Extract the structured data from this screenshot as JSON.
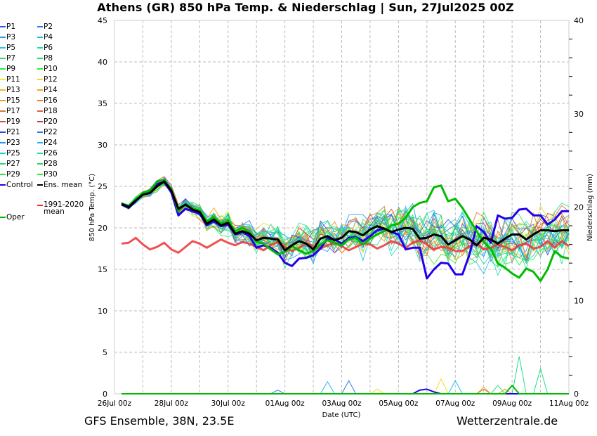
{
  "header": {
    "title": "Athens  (GR)  850 hPa Temp. & Niederschlag | Sun, 27Jul2025 00Z"
  },
  "footer": {
    "left": "GFS Ensemble, 38N, 23.5E",
    "right": "Wetterzentrale.de"
  },
  "chart_data": {
    "type": "line",
    "title": "Athens  (GR)  850 hPa Temp. & Niederschlag | Sun, 27Jul2025 00Z",
    "xlabel": "Date (UTC)",
    "ylabel": "850 hPa Temp. (°C)",
    "y2label": "Niederschlag (mm)",
    "ylim": [
      0,
      45
    ],
    "y2lim": [
      0,
      40
    ],
    "yticks": [
      "0",
      "5",
      "10",
      "15",
      "20",
      "25",
      "30",
      "35",
      "40",
      "45"
    ],
    "y2ticks": [
      "0",
      "10",
      "20",
      "30",
      "40"
    ],
    "xticks": [
      "26Jul 00z",
      "28Jul 00z",
      "30Jul 00z",
      "01Aug 00z",
      "03Aug 00z",
      "05Aug 00z",
      "07Aug 00z",
      "09Aug 00z",
      "11Aug 00z"
    ],
    "x_start": "26Jul 06z",
    "x_step_hours": 6,
    "grid": true,
    "legend_position": "left-outside",
    "legend": [
      {
        "name": "P1",
        "color": "#2255ee"
      },
      {
        "name": "P2",
        "color": "#3377ee"
      },
      {
        "name": "P3",
        "color": "#2299ee"
      },
      {
        "name": "P4",
        "color": "#22bbee"
      },
      {
        "name": "P5",
        "color": "#22ccdd"
      },
      {
        "name": "P6",
        "color": "#22ddaa"
      },
      {
        "name": "P7",
        "color": "#22dd88"
      },
      {
        "name": "P8",
        "color": "#22dd66"
      },
      {
        "name": "P9",
        "color": "#22ee44"
      },
      {
        "name": "P10",
        "color": "#33ee33"
      },
      {
        "name": "P11",
        "color": "#eeee22"
      },
      {
        "name": "P12",
        "color": "#eedd22"
      },
      {
        "name": "P13",
        "color": "#eebb22"
      },
      {
        "name": "P14",
        "color": "#eeaa22"
      },
      {
        "name": "P15",
        "color": "#ee9922"
      },
      {
        "name": "P16",
        "color": "#dd8822"
      },
      {
        "name": "P17",
        "color": "#dd7733"
      },
      {
        "name": "P18",
        "color": "#dd6644"
      },
      {
        "name": "P19",
        "color": "#cc5544"
      },
      {
        "name": "P20",
        "color": "#bb4444"
      },
      {
        "name": "P21",
        "color": "#2244ee"
      },
      {
        "name": "P22",
        "color": "#3377ee"
      },
      {
        "name": "P23",
        "color": "#2299ee"
      },
      {
        "name": "P24",
        "color": "#22bbee"
      },
      {
        "name": "P25",
        "color": "#22ccdd"
      },
      {
        "name": "P26",
        "color": "#22ddaa"
      },
      {
        "name": "P27",
        "color": "#22dd88"
      },
      {
        "name": "P28",
        "color": "#22dd66"
      },
      {
        "name": "P29",
        "color": "#22ee44"
      },
      {
        "name": "P30",
        "color": "#33ee33"
      },
      {
        "name": "Control",
        "color": "#2200ee"
      },
      {
        "name": "Ens. mean",
        "color": "#000000"
      },
      {
        "name": "1991-2020 mean",
        "color": "#ee3333"
      },
      {
        "name": "Oper",
        "color": "#00bb00"
      }
    ],
    "series": [
      {
        "name": "Ens. mean",
        "color": "#000000",
        "axis": "temp",
        "values": [
          22.9,
          22.5,
          23.3,
          24.0,
          24.2,
          25.0,
          25.6,
          24.5,
          22.3,
          22.8,
          22.2,
          21.9,
          20.5,
          21.0,
          20.3,
          20.6,
          19.3,
          19.6,
          19.3,
          18.5,
          18.8,
          18.7,
          18.6,
          17.3,
          17.9,
          18.4,
          18.1,
          17.4,
          18.7,
          19.0,
          18.5,
          18.8,
          19.6,
          19.5,
          19.1,
          19.8,
          20.2,
          19.9,
          19.5,
          19.8,
          20.0,
          19.9,
          18.7,
          18.8,
          19.2,
          19.0,
          18.0,
          18.5,
          19.0,
          18.6,
          17.9,
          18.8,
          18.6,
          18.1,
          18.7,
          19.2,
          19.2,
          18.6,
          19.2,
          19.7,
          19.7,
          19.6,
          19.7,
          19.7
        ]
      },
      {
        "name": "Control",
        "color": "#2200ee",
        "axis": "temp",
        "values": [
          22.8,
          22.4,
          23.2,
          24.1,
          24.3,
          25.3,
          25.5,
          24.3,
          21.5,
          22.3,
          22.0,
          21.7,
          20.3,
          20.8,
          20.2,
          20.4,
          19.2,
          19.5,
          19.0,
          17.6,
          17.9,
          17.6,
          17.0,
          15.8,
          15.4,
          16.3,
          16.4,
          16.7,
          17.5,
          18.7,
          18.6,
          18.1,
          18.8,
          18.9,
          18.4,
          19.0,
          19.7,
          19.9,
          19.5,
          19.2,
          17.4,
          17.6,
          17.6,
          13.9,
          15.0,
          15.8,
          15.7,
          14.4,
          14.4,
          16.8,
          20.2,
          19.5,
          18.2,
          21.5,
          21.1,
          21.2,
          22.2,
          22.3,
          21.5,
          21.5,
          20.4,
          21.0,
          22.0,
          22.0
        ]
      },
      {
        "name": "Oper",
        "color": "#00bb00",
        "axis": "temp",
        "values": [
          22.9,
          22.6,
          23.4,
          24.2,
          24.5,
          25.6,
          25.8,
          24.6,
          22.0,
          22.9,
          22.3,
          22.1,
          20.8,
          21.3,
          20.5,
          20.9,
          19.6,
          20.0,
          19.5,
          18.3,
          18.1,
          17.4,
          16.8,
          17.1,
          17.8,
          17.3,
          16.9,
          17.2,
          18.0,
          18.5,
          18.2,
          17.9,
          18.6,
          18.8,
          18.0,
          18.7,
          19.2,
          19.6,
          20.3,
          20.5,
          21.2,
          22.5,
          23.0,
          23.2,
          24.9,
          25.1,
          23.2,
          23.5,
          22.4,
          21.0,
          19.6,
          18.3,
          17.5,
          15.7,
          15.2,
          14.5,
          14.0,
          15.1,
          14.7,
          13.6,
          15.0,
          17.2,
          16.5,
          16.3
        ]
      },
      {
        "name": "1991-2020 mean",
        "color": "#ee3333",
        "axis": "temp",
        "values": [
          18.1,
          18.2,
          18.8,
          18.0,
          17.4,
          17.7,
          18.2,
          17.4,
          17.0,
          17.7,
          18.4,
          18.1,
          17.6,
          18.1,
          18.6,
          18.2,
          17.9,
          18.3,
          18.1,
          17.7,
          17.3,
          17.9,
          18.3,
          17.7,
          17.2,
          17.6,
          18.1,
          17.8,
          17.5,
          17.9,
          18.2,
          17.8,
          17.3,
          17.7,
          18.1,
          18.0,
          17.5,
          17.9,
          18.4,
          18.1,
          17.6,
          18.2,
          18.5,
          18.0,
          17.4,
          17.7,
          17.6,
          17.2,
          17.2,
          17.8,
          18.1,
          17.4,
          17.6,
          18.0,
          17.7,
          17.3,
          17.9,
          18.1,
          17.5,
          17.7,
          18.4,
          17.6,
          18.4,
          17.8
        ]
      },
      {
        "name": "Control precip",
        "color": "#2200ee",
        "axis": "precip",
        "values": [
          0,
          0,
          0,
          0,
          0,
          0,
          0,
          0,
          0,
          0,
          0,
          0,
          0,
          0,
          0,
          0,
          0,
          0,
          0,
          0,
          0,
          0,
          0,
          0,
          0,
          0,
          0,
          0,
          0,
          0,
          0,
          0,
          0,
          0,
          0,
          0,
          0,
          0,
          0,
          0,
          0,
          0,
          0.4,
          0.5,
          0.2,
          0,
          0,
          0,
          0,
          0,
          0,
          0,
          0,
          0,
          0,
          0,
          0,
          0,
          0,
          0,
          0,
          0,
          0,
          0
        ]
      },
      {
        "name": "Oper precip",
        "color": "#00bb00",
        "axis": "precip",
        "values": [
          0,
          0,
          0,
          0,
          0,
          0,
          0,
          0,
          0,
          0,
          0,
          0,
          0,
          0,
          0,
          0,
          0,
          0,
          0,
          0,
          0,
          0,
          0,
          0,
          0,
          0,
          0,
          0,
          0,
          0,
          0,
          0,
          0,
          0,
          0,
          0,
          0,
          0,
          0,
          0,
          0,
          0,
          0,
          0,
          0,
          0,
          0,
          0,
          0,
          0,
          0,
          0,
          0,
          0,
          0,
          0.9,
          0,
          0,
          0,
          0,
          0,
          0,
          0,
          0
        ]
      }
    ]
  }
}
